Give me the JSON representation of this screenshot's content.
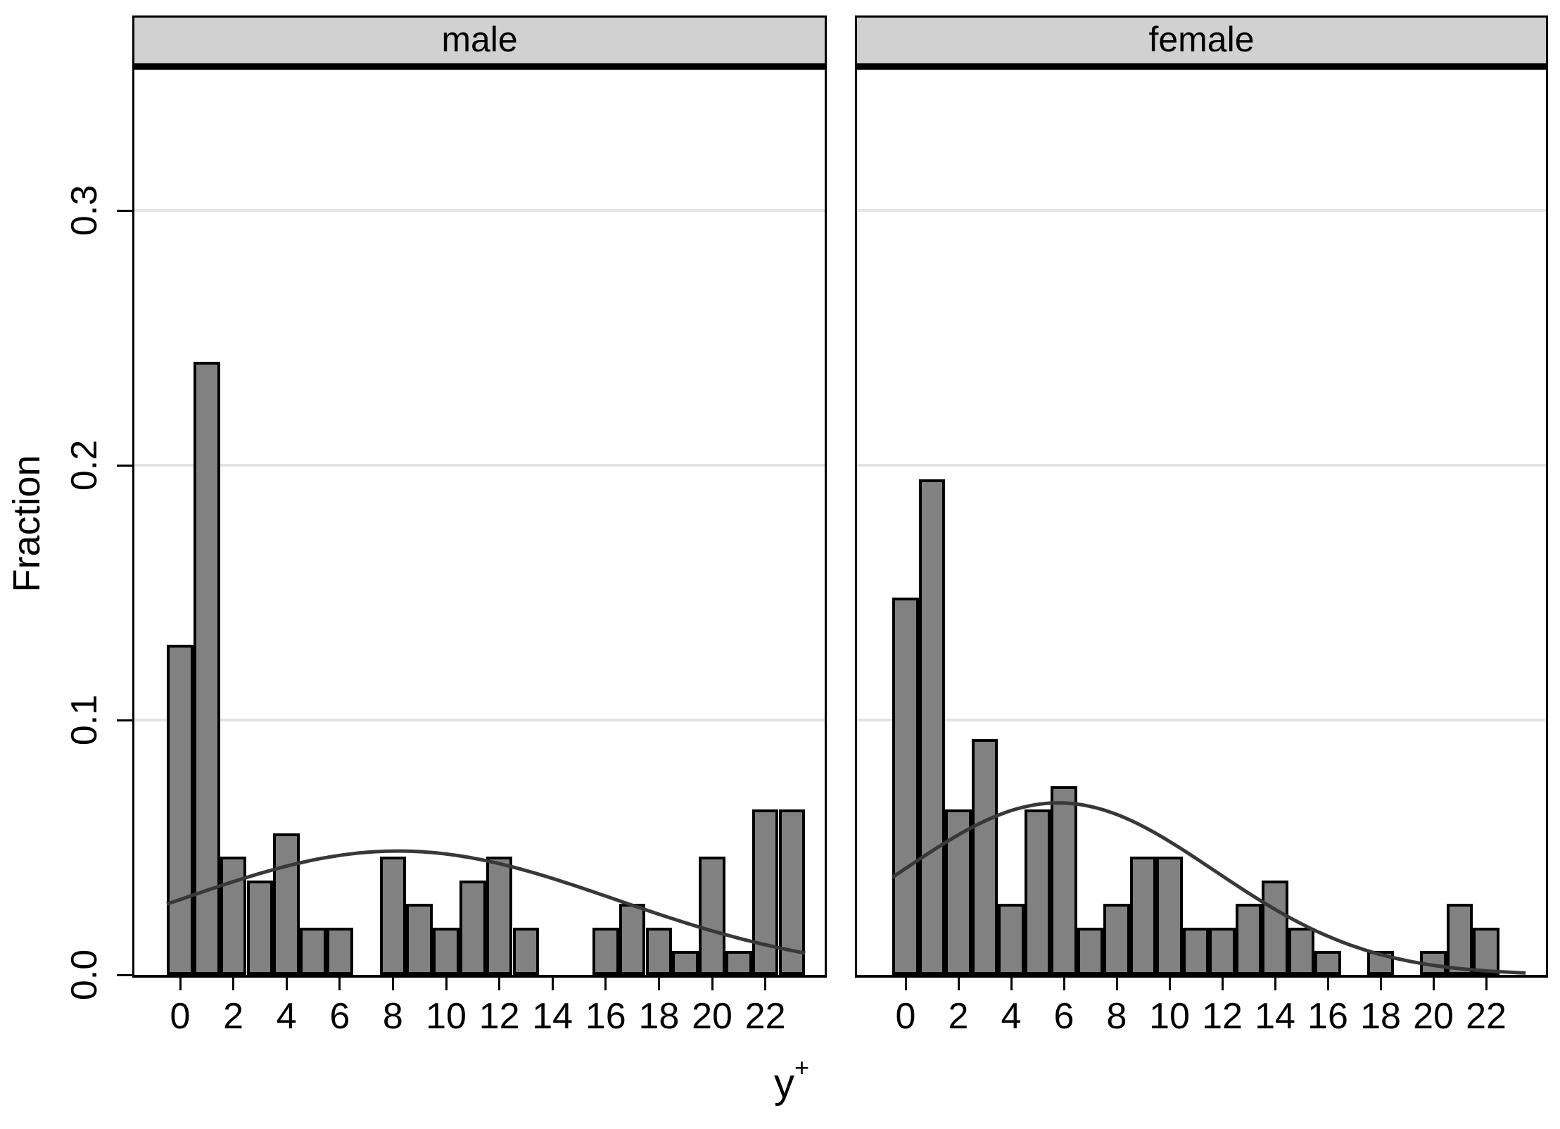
{
  "figure": {
    "ylabel": "Fraction",
    "xlabel": {
      "base": "y",
      "superscript": "+"
    },
    "colors": {
      "background": "#ffffff",
      "bar_fill": "#818181",
      "bar_stroke": "#000000",
      "header_bg": "#d1d1d1",
      "gridline": "#e4e4e4",
      "curve": "#383838",
      "axis": "#000000"
    }
  },
  "y_axis": {
    "title": "Fraction",
    "tick_values": [
      0,
      0.1,
      0.2,
      0.3
    ],
    "tick_labels": [
      "0.0",
      "0.1",
      "0.2",
      "0.3"
    ],
    "range": [
      0,
      0.355
    ],
    "labels_rotated": true
  },
  "x_axis": {
    "tick_values": [
      0,
      2,
      4,
      6,
      8,
      10,
      12,
      14,
      16,
      18,
      20,
      22
    ],
    "range": [
      -0.5,
      23.5
    ]
  },
  "chart_data": [
    {
      "type": "bar",
      "title": "male",
      "bins": [
        0,
        1,
        2,
        3,
        4,
        5,
        6,
        7,
        8,
        9,
        10,
        11,
        12,
        13,
        14,
        15,
        16,
        17,
        18,
        19,
        20,
        21,
        22,
        23
      ],
      "values": [
        0.1296,
        0.2407,
        0.0463,
        0.037,
        0.0556,
        0.0185,
        0.0185,
        0,
        0.0463,
        0.0278,
        0.0185,
        0.037,
        0.0463,
        0.0185,
        0,
        0,
        0.0185,
        0.0278,
        0.0185,
        0.0093,
        0.0463,
        0.0093,
        0.0648,
        0.0648
      ],
      "normal_curve": {
        "mean": 8.19,
        "sd": 8.21,
        "peak_height": 0.0486
      }
    },
    {
      "type": "bar",
      "title": "female",
      "bins": [
        0,
        1,
        2,
        3,
        4,
        5,
        6,
        7,
        8,
        9,
        10,
        11,
        12,
        13,
        14,
        15,
        16,
        17,
        18,
        19,
        20,
        21,
        22,
        23
      ],
      "values": [
        0.1481,
        0.1944,
        0.0648,
        0.0926,
        0.0278,
        0.0648,
        0.0741,
        0.0185,
        0.0278,
        0.0463,
        0.0463,
        0.0185,
        0.0185,
        0.0278,
        0.037,
        0.0185,
        0.0093,
        0,
        0.0093,
        0,
        0.0093,
        0.0278,
        0.0185,
        0
      ],
      "normal_curve": {
        "mean": 5.79,
        "sd": 5.91,
        "peak_height": 0.0675
      }
    }
  ]
}
